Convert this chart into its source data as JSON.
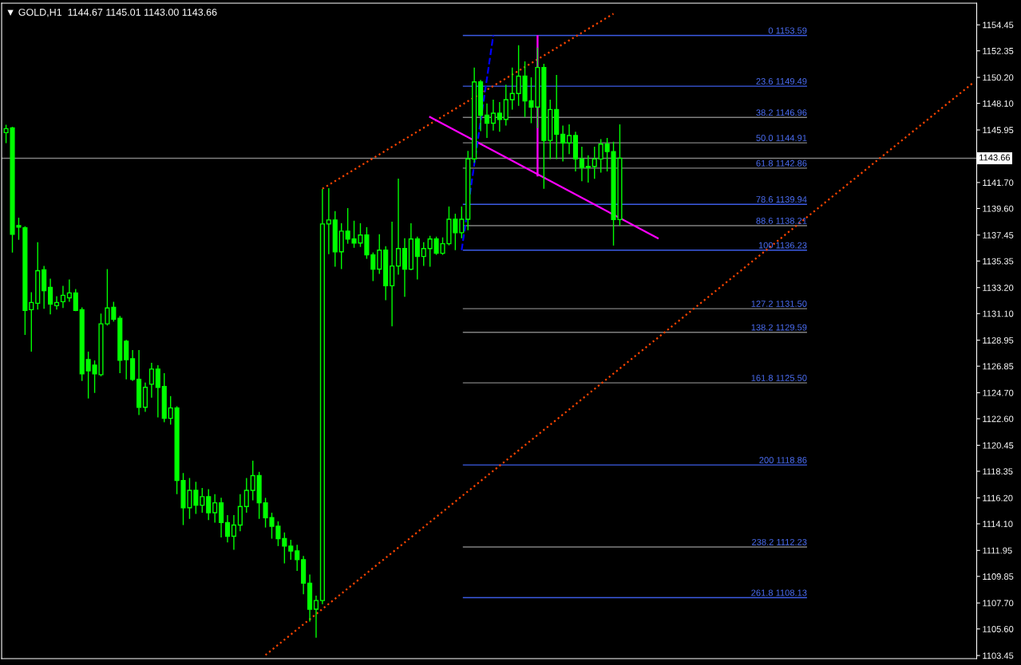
{
  "chart_data": {
    "type": "candlestick",
    "title": "▼ GOLD,H1  1144.67 1145.01 1143.00 1143.66",
    "color": "#00ff00",
    "categories": [
      null,
      null,
      null,
      null,
      null,
      null,
      null,
      null,
      null,
      null,
      null,
      null,
      null,
      null,
      null,
      null,
      null,
      null,
      null,
      null,
      null,
      null,
      null,
      null,
      null,
      null,
      null,
      null,
      null,
      null,
      null,
      null,
      null,
      null,
      null,
      null,
      null,
      null,
      null,
      null,
      null,
      null,
      null,
      null,
      null,
      null,
      null,
      null,
      null,
      null,
      null,
      null,
      null,
      null,
      null,
      null,
      null,
      null,
      null,
      null,
      null,
      null,
      null,
      null,
      null,
      null,
      null,
      null,
      null,
      null,
      null,
      null,
      null,
      null,
      null,
      null,
      null,
      null,
      null,
      null,
      null,
      null,
      null,
      null,
      null,
      null,
      null,
      null,
      null,
      null,
      null,
      null,
      null,
      null,
      null,
      null,
      null,
      null,
      null,
      null,
      null,
      null,
      null,
      null,
      null,
      null,
      null,
      null,
      null,
      null,
      null,
      null,
      null,
      null,
      null,
      null,
      null,
      null,
      null,
      null,
      null,
      null,
      null,
      null,
      null,
      null,
      null,
      null,
      null,
      null,
      null,
      null,
      null,
      null,
      null,
      null,
      null,
      null,
      null,
      null,
      null,
      null,
      null,
      null,
      null,
      null,
      null,
      null,
      null,
      null,
      null,
      null,
      null,
      null
    ],
    "ohlc": [
      [
        1145.73,
        1146.37,
        1144.89,
        1146.05
      ],
      [
        1146.11,
        1146.2,
        1136.04,
        1137.52
      ],
      [
        1138.22,
        1138.86,
        1137.07,
        1138.09
      ],
      [
        1138.03,
        1138.16,
        1129.37,
        1131.36
      ],
      [
        1131.42,
        1132.83,
        1128.02,
        1132.0
      ],
      [
        1131.93,
        1136.87,
        1131.42,
        1134.57
      ],
      [
        1134.63,
        1134.95,
        1131.49,
        1132.96
      ],
      [
        1133.22,
        1133.92,
        1131.04,
        1131.87
      ],
      [
        1131.74,
        1132.51,
        1131.42,
        1132.0
      ],
      [
        1132.06,
        1133.35,
        1131.55,
        1132.58
      ],
      [
        1132.38,
        1133.86,
        1132.06,
        1132.77
      ],
      [
        1132.77,
        1133.09,
        1131.29,
        1131.36
      ],
      [
        1131.42,
        1131.61,
        1125.65,
        1126.23
      ],
      [
        1127.38,
        1128.02,
        1124.24,
        1126.48
      ],
      [
        1126.93,
        1127.32,
        1124.69,
        1126.23
      ],
      [
        1126.16,
        1131.1,
        1126.03,
        1130.27
      ],
      [
        1130.27,
        1134.7,
        1130.14,
        1131.55
      ],
      [
        1131.61,
        1132.06,
        1130.46,
        1130.65
      ],
      [
        1130.72,
        1130.91,
        1126.29,
        1127.32
      ],
      [
        1128.86,
        1128.98,
        1125.78,
        1127.38
      ],
      [
        1127.44,
        1128.15,
        1125.65,
        1125.78
      ],
      [
        1125.78,
        1128.15,
        1122.89,
        1123.53
      ],
      [
        1123.53,
        1125.52,
        1123.15,
        1125.14
      ],
      [
        1125.39,
        1127.12,
        1124.3,
        1126.61
      ],
      [
        1126.61,
        1126.93,
        1122.7,
        1125.14
      ],
      [
        1125.2,
        1126.29,
        1122.31,
        1122.63
      ],
      [
        1122.63,
        1124.43,
        1122.12,
        1123.47
      ],
      [
        1123.47,
        1123.6,
        1116.5,
        1117.6
      ],
      [
        1117.6,
        1118.2,
        1114.0,
        1115.4
      ],
      [
        1115.4,
        1117.8,
        1114.5,
        1116.8
      ],
      [
        1116.8,
        1117.5,
        1114.9,
        1115.6
      ],
      [
        1115.6,
        1117.0,
        1115.0,
        1116.3
      ],
      [
        1116.3,
        1116.9,
        1114.4,
        1115.0
      ],
      [
        1115.0,
        1116.5,
        1114.2,
        1115.8
      ],
      [
        1115.8,
        1116.2,
        1113.0,
        1114.2
      ],
      [
        1114.2,
        1114.8,
        1112.6,
        1113.1
      ],
      [
        1113.1,
        1114.8,
        1112.0,
        1114.0
      ],
      [
        1114.0,
        1116.5,
        1113.5,
        1115.5
      ],
      [
        1115.5,
        1117.8,
        1115.0,
        1116.8
      ],
      [
        1116.8,
        1119.2,
        1116.0,
        1118.0
      ],
      [
        1118.0,
        1118.3,
        1114.5,
        1115.8
      ],
      [
        1115.8,
        1116.2,
        1113.8,
        1114.6
      ],
      [
        1114.6,
        1115.0,
        1112.9,
        1113.9
      ],
      [
        1113.9,
        1114.3,
        1112.3,
        1112.9
      ],
      [
        1112.9,
        1113.4,
        1110.9,
        1112.3
      ],
      [
        1112.3,
        1112.8,
        1111.2,
        1111.9
      ],
      [
        1111.9,
        1112.4,
        1110.3,
        1111.2
      ],
      [
        1111.2,
        1111.5,
        1108.4,
        1109.3
      ],
      [
        1109.3,
        1110.0,
        1106.2,
        1107.2
      ],
      [
        1107.2,
        1108.3,
        1104.9,
        1107.9
      ],
      [
        1107.9,
        1141.17,
        1107.6,
        1138.35
      ],
      [
        1138.35,
        1141.24,
        1135.91,
        1138.67
      ],
      [
        1138.67,
        1139.38,
        1134.89,
        1136.1
      ],
      [
        1136.1,
        1138.41,
        1134.7,
        1137.77
      ],
      [
        1137.77,
        1139.63,
        1136.75,
        1137.13
      ],
      [
        1137.13,
        1138.61,
        1136.42,
        1136.81
      ],
      [
        1136.81,
        1138.41,
        1136.49,
        1137.45
      ],
      [
        1137.45,
        1138.09,
        1135.53,
        1135.85
      ],
      [
        1135.85,
        1136.04,
        1133.73,
        1134.7
      ],
      [
        1134.7,
        1137.52,
        1134.31,
        1136.23
      ],
      [
        1136.23,
        1136.55,
        1132.19,
        1133.35
      ],
      [
        1133.35,
        1138.54,
        1130.07,
        1134.95
      ],
      [
        1134.95,
        1142.01,
        1134.24,
        1136.36
      ],
      [
        1136.36,
        1137.2,
        1132.45,
        1134.69
      ],
      [
        1134.69,
        1138.41,
        1134.6,
        1137.13
      ],
      [
        1137.13,
        1137.32,
        1133.86,
        1135.72
      ],
      [
        1135.72,
        1136.87,
        1134.95,
        1136.36
      ],
      [
        1136.36,
        1137.39,
        1134.89,
        1137.13
      ],
      [
        1137.13,
        1137.32,
        1135.85,
        1135.98
      ],
      [
        1135.98,
        1137.26,
        1135.85,
        1136.75
      ],
      [
        1136.75,
        1139.76,
        1136.62,
        1138.73
      ],
      [
        1138.73,
        1139.18,
        1136.23,
        1137.64
      ],
      [
        1137.64,
        1139.76,
        1137.2,
        1138.73
      ],
      [
        1138.73,
        1144.25,
        1137.84,
        1143.61
      ],
      [
        1143.61,
        1150.99,
        1143.29,
        1149.83
      ],
      [
        1149.83,
        1150.0,
        1145.85,
        1147.14
      ],
      [
        1147.14,
        1148.1,
        1145.3,
        1146.5
      ],
      [
        1146.5,
        1148.4,
        1145.9,
        1147.3
      ],
      [
        1147.3,
        1148.2,
        1145.8,
        1146.8
      ],
      [
        1146.8,
        1149.6,
        1146.3,
        1148.4
      ],
      [
        1148.4,
        1151.0,
        1147.6,
        1148.9
      ],
      [
        1148.9,
        1152.8,
        1147.9,
        1150.3
      ],
      [
        1150.3,
        1151.5,
        1147.0,
        1148.3
      ],
      [
        1148.3,
        1150.2,
        1146.5,
        1147.8
      ],
      [
        1147.8,
        1152.6,
        1146.1,
        1151.0
      ],
      [
        1151.0,
        1151.3,
        1141.2,
        1145.1
      ],
      [
        1145.1,
        1148.4,
        1143.6,
        1147.6
      ],
      [
        1147.6,
        1150.4,
        1143.6,
        1145.6
      ],
      [
        1145.6,
        1146.3,
        1143.4,
        1144.9
      ],
      [
        1144.9,
        1146.4,
        1144.0,
        1145.5
      ],
      [
        1145.5,
        1145.8,
        1142.6,
        1143.6
      ],
      [
        1143.6,
        1144.6,
        1141.8,
        1142.9
      ],
      [
        1142.9,
        1143.9,
        1141.7,
        1143.0
      ],
      [
        1143.0,
        1144.6,
        1142.0,
        1143.6
      ],
      [
        1143.6,
        1145.2,
        1142.5,
        1144.8
      ],
      [
        1144.8,
        1145.3,
        1142.6,
        1144.2
      ],
      [
        1144.2,
        1145.0,
        1136.6,
        1138.7
      ],
      [
        1138.7,
        1146.4,
        1138.2,
        1143.66
      ],
      null,
      null,
      null,
      null,
      null,
      null,
      null,
      null,
      null,
      null,
      null,
      null,
      null,
      null,
      null,
      null,
      null,
      null,
      null,
      null,
      null,
      null,
      null,
      null,
      null,
      null,
      null,
      null,
      null,
      null,
      null,
      null,
      null,
      null,
      null,
      null,
      null,
      null,
      null,
      null,
      null,
      null,
      null,
      null,
      null,
      null,
      null,
      null,
      null,
      null,
      null,
      null,
      null,
      null,
      null,
      null
    ],
    "series": [
      {
        "type": "line",
        "color": "#ff4500",
        "line_style": "dotted",
        "values": [
          null,
          null,
          null,
          null,
          null,
          null,
          null,
          null,
          null,
          null,
          null,
          null,
          null,
          null,
          null,
          null,
          null,
          null,
          null,
          null,
          null,
          null,
          null,
          null,
          null,
          null,
          null,
          null,
          null,
          null,
          null,
          null,
          null,
          null,
          null,
          null,
          null,
          null,
          null,
          null,
          null,
          null,
          null,
          null,
          null,
          null,
          null,
          null,
          null,
          null,
          1141.2,
          null,
          null,
          null,
          null,
          null,
          null,
          null,
          null,
          null,
          null,
          null,
          null,
          null,
          null,
          null,
          null,
          null,
          null,
          null,
          null,
          null,
          null,
          null,
          null,
          null,
          null,
          null,
          null,
          null,
          null,
          null,
          null,
          null,
          null,
          null,
          null,
          null,
          null,
          null,
          null,
          null,
          null,
          null,
          null,
          null,
          1155.35,
          null,
          null,
          null,
          null,
          null,
          null,
          null,
          null,
          null,
          null,
          null,
          null,
          null,
          null,
          null,
          null,
          null,
          null,
          null,
          null,
          null,
          null,
          null,
          null,
          null,
          null,
          null,
          null,
          null,
          null,
          null,
          null,
          null,
          null,
          null,
          null,
          null,
          null,
          null,
          null,
          null,
          null,
          null,
          null,
          null,
          null,
          null,
          null,
          null,
          null,
          null,
          null,
          null,
          null,
          null,
          null,
          null
        ]
      },
      {
        "type": "line",
        "color": "#ff4500",
        "line_style": "dotted",
        "values": [
          null,
          null,
          null,
          null,
          null,
          null,
          null,
          null,
          null,
          null,
          null,
          null,
          null,
          null,
          null,
          null,
          null,
          null,
          null,
          null,
          null,
          null,
          null,
          null,
          null,
          null,
          null,
          null,
          null,
          null,
          null,
          null,
          null,
          null,
          null,
          null,
          null,
          null,
          null,
          null,
          null,
          1103.49,
          null,
          null,
          null,
          null,
          null,
          null,
          null,
          null,
          null,
          null,
          null,
          null,
          null,
          null,
          null,
          null,
          null,
          null,
          null,
          null,
          null,
          null,
          null,
          null,
          null,
          null,
          null,
          null,
          null,
          null,
          null,
          null,
          null,
          null,
          null,
          null,
          null,
          null,
          null,
          null,
          null,
          null,
          null,
          null,
          null,
          null,
          null,
          null,
          null,
          null,
          null,
          null,
          null,
          null,
          null,
          null,
          null,
          null,
          null,
          null,
          null,
          null,
          null,
          null,
          null,
          null,
          null,
          null,
          null,
          null,
          null,
          null,
          null,
          null,
          null,
          null,
          null,
          null,
          null,
          null,
          null,
          null,
          null,
          null,
          null,
          null,
          null,
          null,
          null,
          null,
          null,
          null,
          null,
          null,
          null,
          null,
          null,
          null,
          null,
          null,
          null,
          null,
          null,
          null,
          null,
          null,
          null,
          null,
          null,
          null,
          null,
          1149.83
        ]
      },
      {
        "type": "line",
        "color": "#ff00ff",
        "line_style": "solid",
        "values": [
          null,
          null,
          null,
          null,
          null,
          null,
          null,
          null,
          null,
          null,
          null,
          null,
          null,
          null,
          null,
          null,
          null,
          null,
          null,
          null,
          null,
          null,
          null,
          null,
          null,
          null,
          null,
          null,
          null,
          null,
          null,
          null,
          null,
          null,
          null,
          null,
          null,
          null,
          null,
          null,
          null,
          null,
          null,
          null,
          null,
          null,
          null,
          null,
          null,
          null,
          null,
          null,
          null,
          null,
          null,
          null,
          null,
          null,
          null,
          null,
          null,
          null,
          null,
          null,
          null,
          null,
          null,
          1147.0,
          null,
          null,
          null,
          null,
          null,
          null,
          null,
          null,
          null,
          null,
          null,
          null,
          null,
          null,
          null,
          null,
          null,
          null,
          null,
          null,
          null,
          null,
          null,
          null,
          null,
          null,
          null,
          null,
          null,
          null,
          null,
          null,
          null,
          null,
          null,
          1137.2,
          null,
          null,
          null,
          null,
          null,
          null,
          null,
          null,
          null,
          null,
          null,
          null,
          null,
          null,
          null,
          null,
          null,
          null,
          null,
          null,
          null,
          null,
          null,
          null,
          null,
          null,
          null,
          null,
          null,
          null,
          null,
          null,
          null,
          null,
          null,
          null,
          null,
          null,
          null,
          null,
          null,
          null,
          null,
          null,
          null,
          null,
          null,
          null,
          null,
          null
        ]
      },
      {
        "type": "bar",
        "color": "#ff00ff",
        "values": [
          null,
          null,
          null,
          null,
          null,
          null,
          null,
          null,
          null,
          null,
          null,
          null,
          null,
          null,
          null,
          null,
          null,
          null,
          null,
          null,
          null,
          null,
          null,
          null,
          null,
          null,
          null,
          null,
          null,
          null,
          null,
          null,
          null,
          null,
          null,
          null,
          null,
          null,
          null,
          null,
          null,
          null,
          null,
          null,
          null,
          null,
          null,
          null,
          null,
          null,
          null,
          null,
          null,
          null,
          null,
          null,
          null,
          null,
          null,
          null,
          null,
          null,
          null,
          null,
          null,
          null,
          null,
          null,
          null,
          null,
          null,
          null,
          null,
          null,
          null,
          null,
          null,
          null,
          null,
          null,
          null,
          null,
          null,
          null,
          11.42,
          null,
          null,
          null,
          null,
          null,
          null,
          null,
          null,
          null,
          null,
          null,
          null,
          null,
          null,
          null,
          null,
          null,
          null,
          null,
          null,
          null,
          null,
          null,
          null,
          null,
          null,
          null,
          null,
          null,
          null,
          null,
          null,
          null,
          null,
          null,
          null,
          null,
          null,
          null,
          null,
          null,
          null,
          null,
          null,
          null,
          null,
          null,
          null,
          null,
          null,
          null,
          null,
          null,
          null,
          null,
          null,
          null,
          null,
          null,
          null,
          null,
          null,
          null,
          null,
          null,
          null,
          null,
          null,
          null
        ],
        "base": [
          null,
          null,
          null,
          null,
          null,
          null,
          null,
          null,
          null,
          null,
          null,
          null,
          null,
          null,
          null,
          null,
          null,
          null,
          null,
          null,
          null,
          null,
          null,
          null,
          null,
          null,
          null,
          null,
          null,
          null,
          null,
          null,
          null,
          null,
          null,
          null,
          null,
          null,
          null,
          null,
          null,
          null,
          null,
          null,
          null,
          null,
          null,
          null,
          null,
          null,
          null,
          null,
          null,
          null,
          null,
          null,
          null,
          null,
          null,
          null,
          null,
          null,
          null,
          null,
          null,
          null,
          null,
          null,
          null,
          null,
          null,
          null,
          null,
          null,
          null,
          null,
          null,
          null,
          null,
          null,
          null,
          null,
          null,
          null,
          1142.2,
          null,
          null,
          null,
          null,
          null,
          null,
          null,
          null,
          null,
          null,
          null,
          null,
          null,
          null,
          null,
          null,
          null,
          null,
          null,
          null,
          null,
          null,
          null,
          null,
          null,
          null,
          null,
          null,
          null,
          null,
          null,
          null,
          null,
          null,
          null,
          null,
          null,
          null,
          null,
          null,
          null,
          null,
          null,
          null,
          null,
          null,
          null,
          null,
          null,
          null,
          null,
          null,
          null,
          null,
          null,
          null,
          null,
          null,
          null,
          null,
          null,
          null,
          null,
          null,
          null,
          null,
          null,
          null,
          null
        ]
      },
      {
        "type": "line",
        "color": "#0000ff",
        "line_style": "dashed",
        "values": [
          null,
          null,
          null,
          null,
          null,
          null,
          null,
          null,
          null,
          null,
          null,
          null,
          null,
          null,
          null,
          null,
          null,
          null,
          null,
          null,
          null,
          null,
          null,
          null,
          null,
          null,
          null,
          null,
          null,
          null,
          null,
          null,
          null,
          null,
          null,
          null,
          null,
          null,
          null,
          null,
          null,
          null,
          null,
          null,
          null,
          null,
          null,
          null,
          null,
          null,
          null,
          null,
          null,
          null,
          null,
          null,
          null,
          null,
          null,
          null,
          null,
          null,
          null,
          null,
          null,
          null,
          null,
          null,
          null,
          null,
          null,
          null,
          1136.23,
          null,
          null,
          null,
          null,
          1153.59,
          null,
          null,
          null,
          null,
          null,
          null,
          null,
          null,
          null,
          null,
          null,
          null,
          null,
          null,
          null,
          null,
          null,
          null,
          null,
          null,
          null,
          null,
          null,
          null,
          null,
          null,
          null,
          null,
          null,
          null,
          null,
          null,
          null,
          null,
          null,
          null,
          null,
          null,
          null,
          null,
          null,
          null,
          null,
          null,
          null,
          null,
          null,
          null,
          null,
          null,
          null,
          null,
          null,
          null,
          null,
          null,
          null,
          null,
          null,
          null,
          null,
          null,
          null,
          null,
          null,
          null,
          null,
          null,
          null,
          null,
          null,
          null,
          null,
          null,
          null,
          null
        ]
      }
    ],
    "ref_lines": [
      {
        "axis": "y",
        "value": 1143.66,
        "label": "1143.66",
        "color": "#808080"
      },
      {
        "axis": "y",
        "value": 1153.59,
        "label": "0 1153.59",
        "color": "#3c5ce6"
      },
      {
        "axis": "y",
        "value": 1149.49,
        "label": "23.6 1149.49",
        "color": "#3c5ce6"
      },
      {
        "axis": "y",
        "value": 1146.96,
        "label": "38.2 1146.96",
        "color": "#808080"
      },
      {
        "axis": "y",
        "value": 1144.91,
        "label": "50.0 1144.91",
        "color": "#808080"
      },
      {
        "axis": "y",
        "value": 1142.86,
        "label": "61.8 1142.86",
        "color": "#808080"
      },
      {
        "axis": "y",
        "value": 1139.94,
        "label": "78.6 1139.94",
        "color": "#3c5ce6"
      },
      {
        "axis": "y",
        "value": 1138.21,
        "label": "88.6 1138.21",
        "color": "#808080"
      },
      {
        "axis": "y",
        "value": 1136.23,
        "label": "100 1136.23",
        "color": "#3c5ce6"
      },
      {
        "axis": "y",
        "value": 1131.5,
        "label": "127.2 1131.50",
        "color": "#808080"
      },
      {
        "axis": "y",
        "value": 1129.59,
        "label": "138.2 1129.59",
        "color": "#808080"
      },
      {
        "axis": "y",
        "value": 1125.5,
        "label": "161.8 1125.50",
        "color": "#808080"
      },
      {
        "axis": "y",
        "value": 1118.86,
        "label": "200 1118.86",
        "color": "#3c5ce6"
      },
      {
        "axis": "y",
        "value": 1112.23,
        "label": "238.2 1112.23",
        "color": "#808080"
      },
      {
        "axis": "y",
        "value": 1108.13,
        "label": "261.8 1108.13",
        "color": "#3c5ce6"
      }
    ],
    "ylim": [
      1103.2,
      1156.2
    ],
    "yticks": [
      {
        "value": 1154.45,
        "label": "1154.45"
      },
      {
        "value": 1152.35,
        "label": "1152.35"
      },
      {
        "value": 1150.2,
        "label": "1150.20"
      },
      {
        "value": 1148.1,
        "label": "1148.10"
      },
      {
        "value": 1145.95,
        "label": "1145.95"
      },
      {
        "value": 1141.7,
        "label": "1141.70"
      },
      {
        "value": 1139.6,
        "label": "1139.60"
      },
      {
        "value": 1137.45,
        "label": "1137.45"
      },
      {
        "value": 1135.35,
        "label": "1135.35"
      },
      {
        "value": 1133.2,
        "label": "1133.20"
      },
      {
        "value": 1131.1,
        "label": "1131.10"
      },
      {
        "value": 1128.95,
        "label": "1128.95"
      },
      {
        "value": 1126.85,
        "label": "1126.85"
      },
      {
        "value": 1124.7,
        "label": "1124.70"
      },
      {
        "value": 1122.6,
        "label": "1122.60"
      },
      {
        "value": 1120.45,
        "label": "1120.45"
      },
      {
        "value": 1118.35,
        "label": "1118.35"
      },
      {
        "value": 1116.2,
        "label": "1116.20"
      },
      {
        "value": 1114.1,
        "label": "1114.10"
      },
      {
        "value": 1111.95,
        "label": "1111.95"
      },
      {
        "value": 1109.85,
        "label": "1109.85"
      },
      {
        "value": 1107.7,
        "label": "1107.70"
      },
      {
        "value": 1105.6,
        "label": "1105.60"
      },
      {
        "value": 1103.45,
        "label": "1103.45"
      }
    ],
    "tick_labels": "y",
    "grid": false
  }
}
